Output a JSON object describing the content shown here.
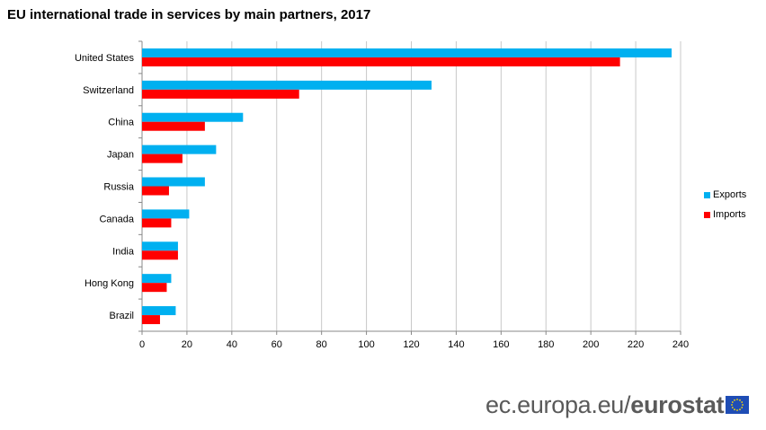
{
  "title": "EU international trade in services by main partners, 2017",
  "chart_data": {
    "type": "bar",
    "orientation": "horizontal",
    "title": "EU international trade in services by main partners, 2017",
    "categories": [
      "United States",
      "Switzerland",
      "China",
      "Japan",
      "Russia",
      "Canada",
      "India",
      "Hong Kong",
      "Brazil"
    ],
    "series": [
      {
        "name": "Exports",
        "color": "#00b0f0",
        "values": [
          236,
          129,
          45,
          33,
          28,
          21,
          16,
          13,
          15
        ]
      },
      {
        "name": "Imports",
        "color": "#ff0000",
        "values": [
          213,
          70,
          28,
          18,
          12,
          13,
          16,
          11,
          8
        ]
      }
    ],
    "xlim": [
      0,
      240
    ],
    "xticks": [
      0,
      20,
      40,
      60,
      80,
      100,
      120,
      140,
      160,
      180,
      200,
      220,
      240
    ],
    "grid": true,
    "legend_position": "right"
  },
  "footer": {
    "site": "ec.europa.eu/",
    "brand": "eurostat"
  },
  "flag_icon": "eu-flag-icon"
}
